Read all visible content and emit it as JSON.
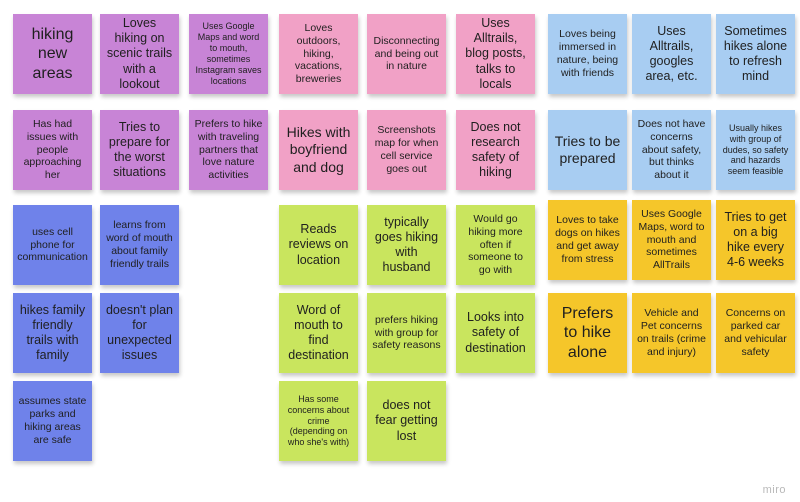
{
  "notes": {
    "purple_1": "hiking new areas",
    "purple_2": "Loves hiking on scenic trails with a lookout",
    "purple_3": "Uses Google Maps and word to mouth, sometimes Instagram saves locations",
    "purple_4": "Has had issues with people approaching her",
    "purple_5": "Tries to prepare for the worst situations",
    "purple_6": "Prefers to hike with traveling partners that love nature activities",
    "pink_1": "Loves outdoors, hiking, vacations, breweries",
    "pink_2": "Disconnecting and being out in nature",
    "pink_3": "Uses Alltrails, blog posts, talks to locals",
    "pink_4": "Hikes with boyfriend and dog",
    "pink_5": "Screenshots map for when cell service goes out",
    "pink_6": "Does not research safety of hiking",
    "lblue_1": "Loves being immersed in nature, being with friends",
    "lblue_2": "Uses Alltrails, googles area, etc.",
    "lblue_3": "Sometimes hikes alone to refresh mind",
    "lblue_4": "Tries to be prepared",
    "lblue_5": "Does not have concerns about safety, but thinks about it",
    "lblue_6": "Usually hikes with group of dudes, so safety and hazards seem feasible",
    "blue_1": "uses cell phone for communication",
    "blue_2": "learns from word of mouth about family friendly trails",
    "blue_3": "hikes family friendly trails with family",
    "blue_4": "doesn't plan for unexpected issues",
    "blue_5": "assumes state parks and hiking areas are safe",
    "green_1": "Reads reviews on location",
    "green_2": "typically goes hiking with husband",
    "green_3": "Would go hiking more often if someone to go with",
    "green_4": "Word of mouth to find destination",
    "green_5": "prefers hiking with group for safety reasons",
    "green_6": "Looks into safety of destination",
    "green_7": "Has some concerns about crime (depending on who she's with)",
    "green_8": "does not fear getting lost",
    "yellow_1": "Loves to take dogs on hikes and get away from stress",
    "yellow_2": "Uses Google Maps, word to mouth and sometimes AllTrails",
    "yellow_3": "Tries to get on a big hike every 4-6 weeks",
    "yellow_4": "Prefers to hike alone",
    "yellow_5": "Vehicle and Pet concerns on trails (crime and injury)",
    "yellow_6": "Concerns on parked car and vehicular safety"
  },
  "colors": {
    "purple": "#c884d6",
    "pink": "#f1a1c6",
    "light_blue": "#a8cdf2",
    "blue": "#6f82ea",
    "green": "#c9e55e",
    "yellow": "#f5c62a"
  },
  "watermark": "miro"
}
